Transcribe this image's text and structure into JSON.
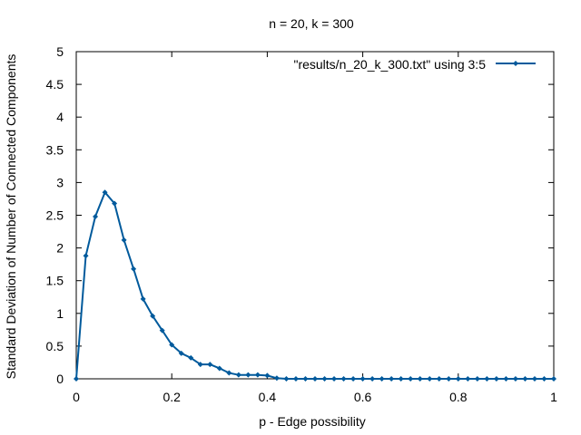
{
  "chart_data": {
    "type": "line",
    "title": "n = 20, k = 300",
    "xlabel": "p - Edge possibility",
    "ylabel": "Standard Deviation of Number of Connected Components",
    "xlim": [
      0,
      1
    ],
    "ylim": [
      0,
      5
    ],
    "xticks": [
      "0",
      "0.2",
      "0.4",
      "0.6",
      "0.8",
      "1"
    ],
    "yticks": [
      "0",
      "0.5",
      "1",
      "1.5",
      "2",
      "2.5",
      "3",
      "3.5",
      "4",
      "4.5",
      "5"
    ],
    "grid": false,
    "legend_position": "top-right",
    "series": [
      {
        "name": "\"results/n_20_k_300.txt\" using 3:5",
        "color": "#005a9c",
        "marker": "diamond",
        "x": [
          0,
          0.02,
          0.04,
          0.06,
          0.08,
          0.1,
          0.12,
          0.14,
          0.16,
          0.18,
          0.2,
          0.22,
          0.24,
          0.26,
          0.28,
          0.3,
          0.32,
          0.34,
          0.36,
          0.38,
          0.4,
          0.42,
          0.44,
          0.46,
          0.48,
          0.5,
          0.52,
          0.54,
          0.56,
          0.58,
          0.6,
          0.62,
          0.64,
          0.66,
          0.68,
          0.7,
          0.72,
          0.74,
          0.76,
          0.78,
          0.8,
          0.82,
          0.84,
          0.86,
          0.88,
          0.9,
          0.92,
          0.94,
          0.96,
          0.98,
          1.0
        ],
        "y": [
          0,
          1.88,
          2.48,
          2.85,
          2.68,
          2.12,
          1.68,
          1.22,
          0.96,
          0.74,
          0.52,
          0.39,
          0.32,
          0.22,
          0.22,
          0.16,
          0.09,
          0.06,
          0.06,
          0.06,
          0.05,
          0.01,
          0,
          0,
          0,
          0,
          0,
          0,
          0,
          0,
          0,
          0,
          0,
          0,
          0,
          0,
          0,
          0,
          0,
          0,
          0,
          0,
          0,
          0,
          0,
          0,
          0,
          0,
          0,
          0,
          0
        ]
      }
    ]
  }
}
